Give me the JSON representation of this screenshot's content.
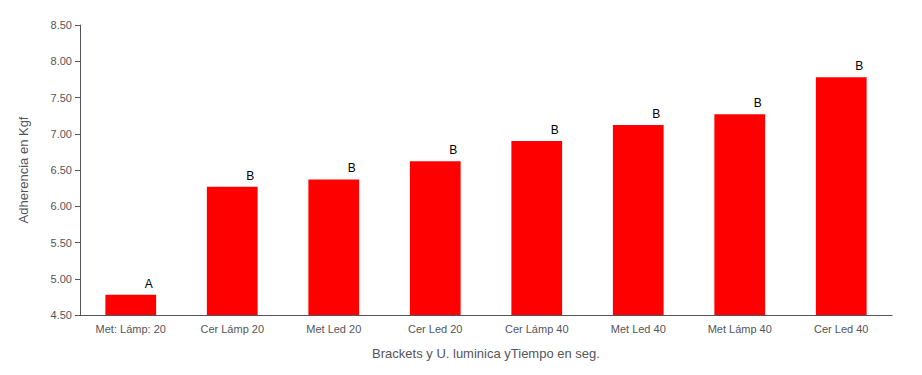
{
  "chart_data": {
    "type": "bar",
    "categories": [
      "Met: Lámp: 20",
      "Cer Lámp 20",
      "Met Led 20",
      "Cer Led 20",
      "Cer Lámp 40",
      "Met Led 40",
      "Met Lámp 40",
      "Cer Led 40"
    ],
    "values": [
      4.78,
      6.27,
      6.37,
      6.62,
      6.9,
      7.12,
      7.27,
      7.78
    ],
    "color": "#FF0000",
    "annotations": [
      "A",
      "B",
      "B",
      "B",
      "B",
      "B",
      "B",
      "B"
    ],
    "xlabel": "Brackets y U. luminica yTiempo en seg.",
    "ylabel": "Adherencia en Kgf",
    "ylim": [
      4.5,
      8.5
    ],
    "yticks": [
      {
        "value": 4.5,
        "label": "4.50"
      },
      {
        "value": 5.0,
        "label": "5.00"
      },
      {
        "value": 5.5,
        "label": "5.50"
      },
      {
        "value": 6.0,
        "label": "6.00"
      },
      {
        "value": 6.5,
        "label": "6.50"
      },
      {
        "value": 7.0,
        "label": "7.00"
      },
      {
        "value": 7.5,
        "label": "7.50"
      },
      {
        "value": 8.0,
        "label": "8.00"
      },
      {
        "value": 8.5,
        "label": "8.50"
      }
    ],
    "grid": false
  }
}
